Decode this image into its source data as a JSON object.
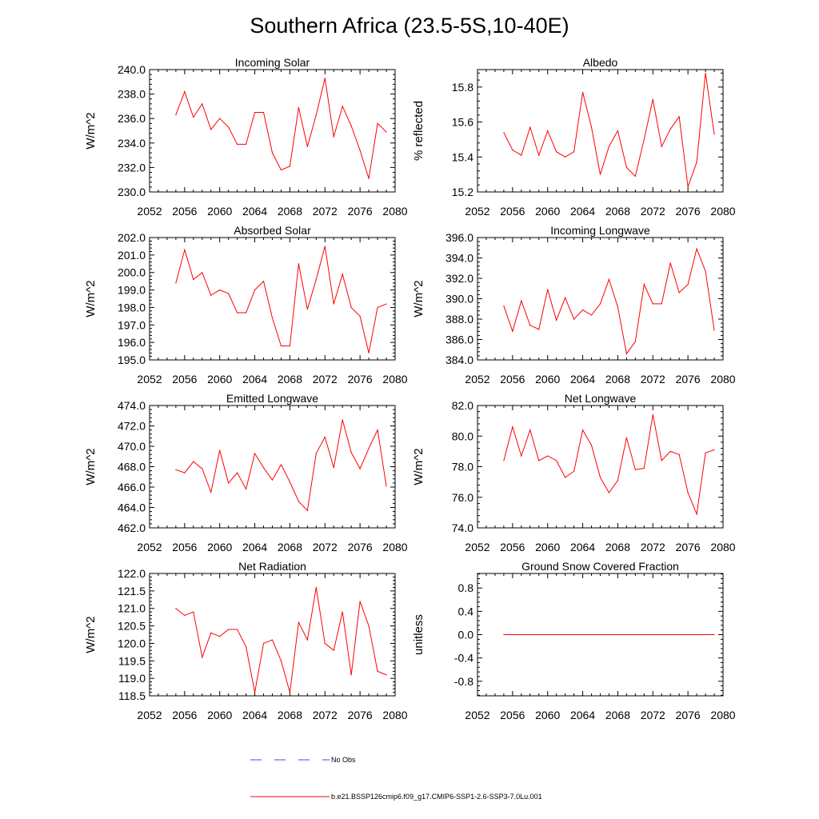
{
  "figure": {
    "title": "Southern Africa (23.5-5S,10-40E)",
    "legend": [
      {
        "label": "No Obs",
        "color": "#3b4cc0",
        "style": "dashed"
      },
      {
        "label": "b.e21.BSSP126cmip6.f09_g17.CMIP6-SSP1-2.6-SSP3-7.0Lu.001",
        "color": "#ff0000",
        "style": "solid"
      }
    ]
  },
  "chart_data": [
    {
      "type": "line",
      "title": "Incoming Solar",
      "xlabel": "",
      "ylabel": "W/m^2",
      "xlim": [
        2052,
        2080
      ],
      "ylim": [
        230,
        240
      ],
      "xticks": [
        2052,
        2056,
        2060,
        2064,
        2068,
        2072,
        2076,
        2080
      ],
      "yticks": [
        230,
        232,
        234,
        236,
        238,
        240
      ],
      "ytick_decimals": 1,
      "x": [
        2055,
        2056,
        2057,
        2058,
        2059,
        2060,
        2061,
        2062,
        2063,
        2064,
        2065,
        2066,
        2067,
        2068,
        2069,
        2070,
        2071,
        2072,
        2073,
        2074,
        2075,
        2076,
        2077,
        2078,
        2079
      ],
      "series": [
        {
          "color": "#ff0000",
          "values": [
            236.3,
            238.2,
            236.1,
            237.2,
            235.1,
            236.0,
            235.3,
            233.9,
            233.9,
            236.5,
            236.5,
            233.2,
            231.8,
            232.1,
            236.9,
            233.7,
            236.3,
            239.3,
            234.5,
            237.0,
            235.4,
            233.4,
            231.1,
            235.6,
            234.9
          ]
        }
      ]
    },
    {
      "type": "line",
      "title": "Albedo",
      "xlabel": "",
      "ylabel": "% reflected",
      "xlim": [
        2052,
        2080
      ],
      "ylim": [
        15.2,
        15.9
      ],
      "xticks": [
        2052,
        2056,
        2060,
        2064,
        2068,
        2072,
        2076,
        2080
      ],
      "yticks": [
        15.2,
        15.4,
        15.6,
        15.8
      ],
      "ytick_decimals": 1,
      "x": [
        2055,
        2056,
        2057,
        2058,
        2059,
        2060,
        2061,
        2062,
        2063,
        2064,
        2065,
        2066,
        2067,
        2068,
        2069,
        2070,
        2071,
        2072,
        2073,
        2074,
        2075,
        2076,
        2077,
        2078,
        2079
      ],
      "series": [
        {
          "color": "#ff0000",
          "values": [
            15.54,
            15.44,
            15.41,
            15.57,
            15.41,
            15.55,
            15.43,
            15.4,
            15.43,
            15.77,
            15.57,
            15.3,
            15.46,
            15.55,
            15.34,
            15.29,
            15.5,
            15.73,
            15.46,
            15.56,
            15.63,
            15.23,
            15.37,
            15.88,
            15.53
          ]
        }
      ]
    },
    {
      "type": "line",
      "title": "Absorbed Solar",
      "xlabel": "",
      "ylabel": "W/m^2",
      "xlim": [
        2052,
        2080
      ],
      "ylim": [
        195,
        202
      ],
      "xticks": [
        2052,
        2056,
        2060,
        2064,
        2068,
        2072,
        2076,
        2080
      ],
      "yticks": [
        195,
        196,
        197,
        198,
        199,
        200,
        201,
        202
      ],
      "ytick_decimals": 1,
      "x": [
        2055,
        2056,
        2057,
        2058,
        2059,
        2060,
        2061,
        2062,
        2063,
        2064,
        2065,
        2066,
        2067,
        2068,
        2069,
        2070,
        2071,
        2072,
        2073,
        2074,
        2075,
        2076,
        2077,
        2078,
        2079
      ],
      "series": [
        {
          "color": "#ff0000",
          "values": [
            199.4,
            201.3,
            199.6,
            200.0,
            198.7,
            199.0,
            198.8,
            197.7,
            197.7,
            199.0,
            199.5,
            197.4,
            195.8,
            195.8,
            200.5,
            197.9,
            199.6,
            201.5,
            198.2,
            199.9,
            198.0,
            197.5,
            195.4,
            198.0,
            198.2
          ]
        }
      ]
    },
    {
      "type": "line",
      "title": "Incoming Longwave",
      "xlabel": "",
      "ylabel": "W/m^2",
      "xlim": [
        2052,
        2080
      ],
      "ylim": [
        384,
        396
      ],
      "xticks": [
        2052,
        2056,
        2060,
        2064,
        2068,
        2072,
        2076,
        2080
      ],
      "yticks": [
        384,
        386,
        388,
        390,
        392,
        394,
        396
      ],
      "ytick_decimals": 1,
      "x": [
        2055,
        2056,
        2057,
        2058,
        2059,
        2060,
        2061,
        2062,
        2063,
        2064,
        2065,
        2066,
        2067,
        2068,
        2069,
        2070,
        2071,
        2072,
        2073,
        2074,
        2075,
        2076,
        2077,
        2078,
        2079
      ],
      "series": [
        {
          "color": "#ff0000",
          "values": [
            389.3,
            386.8,
            389.8,
            387.4,
            387.0,
            390.9,
            387.9,
            390.1,
            388.0,
            388.9,
            388.4,
            389.5,
            391.9,
            389.2,
            384.6,
            385.8,
            391.4,
            389.5,
            389.5,
            393.5,
            390.6,
            391.4,
            394.9,
            392.7,
            386.9
          ]
        }
      ]
    },
    {
      "type": "line",
      "title": "Emitted Longwave",
      "xlabel": "",
      "ylabel": "W/m^2",
      "xlim": [
        2052,
        2080
      ],
      "ylim": [
        462,
        474
      ],
      "xticks": [
        2052,
        2056,
        2060,
        2064,
        2068,
        2072,
        2076,
        2080
      ],
      "yticks": [
        462,
        464,
        466,
        468,
        470,
        472,
        474
      ],
      "ytick_decimals": 1,
      "x": [
        2055,
        2056,
        2057,
        2058,
        2059,
        2060,
        2061,
        2062,
        2063,
        2064,
        2065,
        2066,
        2067,
        2068,
        2069,
        2070,
        2071,
        2072,
        2073,
        2074,
        2075,
        2076,
        2077,
        2078,
        2079
      ],
      "series": [
        {
          "color": "#ff0000",
          "values": [
            467.7,
            467.4,
            468.5,
            467.8,
            465.5,
            469.6,
            466.4,
            467.4,
            465.8,
            469.3,
            467.9,
            466.7,
            468.2,
            466.5,
            464.6,
            463.7,
            469.3,
            470.9,
            467.9,
            472.6,
            469.4,
            467.8,
            469.8,
            471.6,
            466.1
          ]
        }
      ]
    },
    {
      "type": "line",
      "title": "Net Longwave",
      "xlabel": "",
      "ylabel": "W/m^2",
      "xlim": [
        2052,
        2080
      ],
      "ylim": [
        74,
        82
      ],
      "xticks": [
        2052,
        2056,
        2060,
        2064,
        2068,
        2072,
        2076,
        2080
      ],
      "yticks": [
        74,
        76,
        78,
        80,
        82
      ],
      "ytick_decimals": 1,
      "x": [
        2055,
        2056,
        2057,
        2058,
        2059,
        2060,
        2061,
        2062,
        2063,
        2064,
        2065,
        2066,
        2067,
        2068,
        2069,
        2070,
        2071,
        2072,
        2073,
        2074,
        2075,
        2076,
        2077,
        2078,
        2079
      ],
      "series": [
        {
          "color": "#ff0000",
          "values": [
            78.4,
            80.6,
            78.7,
            80.4,
            78.4,
            78.7,
            78.4,
            77.3,
            77.7,
            80.4,
            79.4,
            77.3,
            76.3,
            77.1,
            79.9,
            77.8,
            77.9,
            81.4,
            78.4,
            79.0,
            78.8,
            76.3,
            74.9,
            78.9,
            79.1
          ]
        }
      ]
    },
    {
      "type": "line",
      "title": "Net Radiation",
      "xlabel": "",
      "ylabel": "W/m^2",
      "xlim": [
        2052,
        2080
      ],
      "ylim": [
        118.5,
        122.0
      ],
      "xticks": [
        2052,
        2056,
        2060,
        2064,
        2068,
        2072,
        2076,
        2080
      ],
      "yticks": [
        118.5,
        119.0,
        119.5,
        120.0,
        120.5,
        121.0,
        121.5,
        122.0
      ],
      "ytick_decimals": 1,
      "x": [
        2055,
        2056,
        2057,
        2058,
        2059,
        2060,
        2061,
        2062,
        2063,
        2064,
        2065,
        2066,
        2067,
        2068,
        2069,
        2070,
        2071,
        2072,
        2073,
        2074,
        2075,
        2076,
        2077,
        2078,
        2079
      ],
      "series": [
        {
          "color": "#ff0000",
          "values": [
            121.0,
            120.8,
            120.9,
            119.6,
            120.3,
            120.2,
            120.4,
            120.4,
            119.9,
            118.6,
            120.0,
            120.1,
            119.5,
            118.6,
            120.6,
            120.1,
            121.6,
            120.0,
            119.8,
            120.9,
            119.1,
            121.2,
            120.5,
            119.2,
            119.1
          ]
        }
      ]
    },
    {
      "type": "line",
      "title": "Ground Snow Covered Fraction",
      "xlabel": "",
      "ylabel": "unitless",
      "xlim": [
        2052,
        2080
      ],
      "ylim": [
        -1.05,
        1.05
      ],
      "xticks": [
        2052,
        2056,
        2060,
        2064,
        2068,
        2072,
        2076,
        2080
      ],
      "yticks": [
        -0.8,
        -0.4,
        0.0,
        0.4,
        0.8
      ],
      "ytick_decimals": 1,
      "x": [
        2055,
        2079
      ],
      "series": [
        {
          "color": "#ff0000",
          "values": [
            0.0,
            0.0
          ]
        }
      ]
    }
  ]
}
